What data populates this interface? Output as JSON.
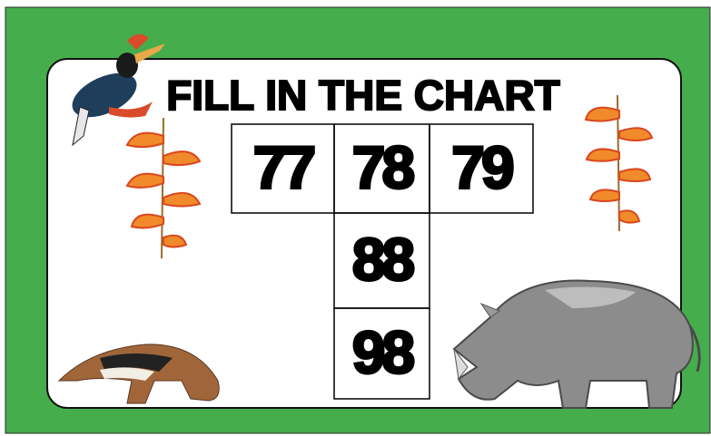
{
  "title": "FILL IN THE CHART",
  "cells": [
    77,
    78,
    79,
    88,
    98
  ]
}
